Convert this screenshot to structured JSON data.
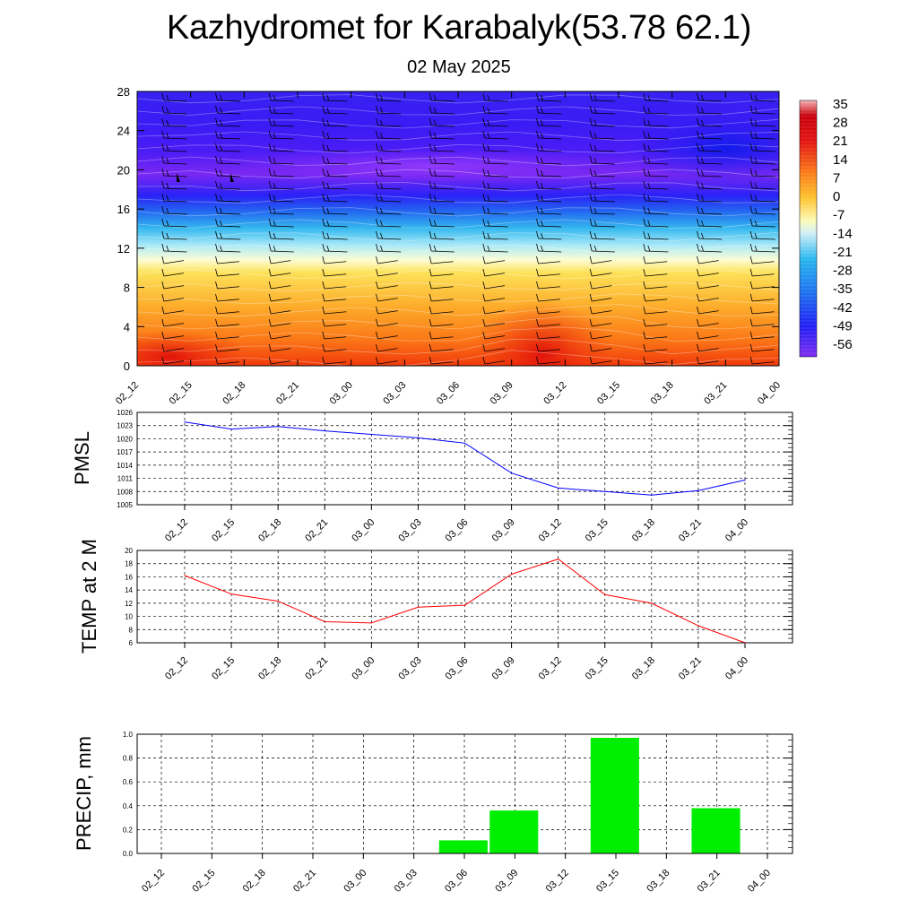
{
  "header": {
    "title": "Kazhydromet for Karabalyk(53.78 62.1)",
    "date": "02 May 2025"
  },
  "colors": {
    "pmsl_line": "#0000ff",
    "temp_line": "#ff0000",
    "precip_bar": "#00ee00"
  },
  "chart_data": [
    {
      "type": "heatmap",
      "x": [
        "02_12",
        "02_15",
        "02_18",
        "02_21",
        "03_00",
        "03_03",
        "03_06",
        "03_09",
        "03_12",
        "03_15",
        "03_18",
        "03_21",
        "04_00"
      ],
      "yticks": [
        0,
        4,
        8,
        12,
        16,
        20,
        24,
        28
      ],
      "ylim": [
        0,
        28
      ],
      "overlay": "wind barbs",
      "colorbar": {
        "labels": [
          "35",
          "28",
          "21",
          "14",
          "7",
          "0",
          "-7",
          "-14",
          "-21",
          "-28",
          "-35",
          "-42",
          "-49",
          "-56"
        ],
        "range": [
          -60,
          38
        ]
      }
    },
    {
      "type": "line",
      "ylabel": "PMSL",
      "x": [
        "02_12",
        "02_15",
        "02_18",
        "02_21",
        "03_00",
        "03_03",
        "03_06",
        "03_09",
        "03_12",
        "03_15",
        "03_18",
        "03_21",
        "04_00"
      ],
      "values": [
        1023.8,
        1022.2,
        1022.8,
        1021.8,
        1021.0,
        1020.2,
        1019.0,
        1012.2,
        1008.8,
        1008.0,
        1007.2,
        1008.2,
        1010.6
      ],
      "ylim": [
        1005,
        1026
      ],
      "yticks": [
        "1005",
        "1008",
        "1011",
        "1014",
        "1017",
        "1020",
        "1023",
        "1026"
      ],
      "grid": true
    },
    {
      "type": "line",
      "ylabel": "TEMP at 2 M",
      "x": [
        "02_12",
        "02_15",
        "02_18",
        "02_21",
        "03_00",
        "03_03",
        "03_06",
        "03_09",
        "03_12",
        "03_15",
        "03_18",
        "03_21",
        "04_00"
      ],
      "values": [
        16.2,
        13.4,
        12.3,
        9.2,
        9.0,
        11.4,
        11.7,
        16.4,
        18.7,
        13.3,
        12.0,
        8.6,
        6.0
      ],
      "ylim": [
        6,
        20
      ],
      "yticks": [
        "6",
        "8",
        "10",
        "12",
        "14",
        "16",
        "18",
        "20"
      ],
      "grid": true
    },
    {
      "type": "bar",
      "ylabel": "PRECIP, mm",
      "categories": [
        "02_12",
        "02_15",
        "02_18",
        "02_21",
        "03_00",
        "03_03",
        "03_06",
        "03_09",
        "03_12",
        "03_15",
        "03_18",
        "03_21",
        "04_00"
      ],
      "values": [
        0,
        0,
        0,
        0,
        0,
        0,
        0.11,
        0.36,
        0,
        0.97,
        0,
        0.38,
        0
      ],
      "ylim": [
        0,
        1.0
      ],
      "yticks": [
        "0.0",
        "0.2",
        "0.4",
        "0.6",
        "0.8",
        "1.0"
      ],
      "grid": true
    }
  ]
}
